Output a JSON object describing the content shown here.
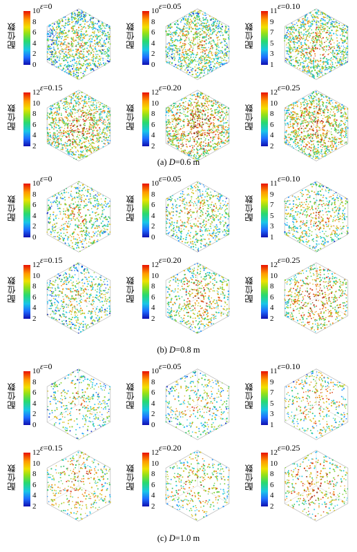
{
  "colorbar_label": "配位数",
  "colors": {
    "particle_palette": [
      "#1030c8",
      "#1e90ff",
      "#19c6e6",
      "#2fc36a",
      "#7fcf2a",
      "#d8c020",
      "#f08a10",
      "#d83010",
      "#8a2a10"
    ]
  },
  "groups": [
    {
      "caption": {
        "prefix": "(a)",
        "var": "D",
        "rest": "=0.6 m"
      },
      "density": 1.0,
      "panels": [
        {
          "eps": "=0",
          "ticks": [
            "10",
            "8",
            "6",
            "4",
            "2",
            "0"
          ],
          "hot": 0.45
        },
        {
          "eps": "=0.05",
          "ticks": [
            "10",
            "8",
            "6",
            "4",
            "2",
            "0"
          ],
          "hot": 0.5
        },
        {
          "eps": "=0.10",
          "ticks": [
            "11",
            "9",
            "7",
            "5",
            "3",
            "1"
          ],
          "hot": 0.55
        },
        {
          "eps": "=0.15",
          "ticks": [
            "12",
            "10",
            "8",
            "6",
            "4",
            "2"
          ],
          "hot": 0.62
        },
        {
          "eps": "=0.20",
          "ticks": [
            "12",
            "10",
            "8",
            "6",
            "4",
            "2"
          ],
          "hot": 0.7
        },
        {
          "eps": "=0.25",
          "ticks": [
            "12",
            "10",
            "8",
            "6",
            "4",
            "2"
          ],
          "hot": 0.66
        }
      ]
    },
    {
      "caption": {
        "prefix": "(b)",
        "var": "D",
        "rest": "=0.8 m"
      },
      "density": 0.6,
      "panels": [
        {
          "eps": "=0",
          "ticks": [
            "10",
            "8",
            "6",
            "4",
            "2",
            "0"
          ],
          "hot": 0.5
        },
        {
          "eps": "=0.05",
          "ticks": [
            "10",
            "8",
            "6",
            "4",
            "2",
            "0"
          ],
          "hot": 0.55
        },
        {
          "eps": "=0.10",
          "ticks": [
            "11",
            "9",
            "7",
            "5",
            "3",
            "1"
          ],
          "hot": 0.55
        },
        {
          "eps": "=0.15",
          "ticks": [
            "12",
            "10",
            "8",
            "6",
            "4",
            "2"
          ],
          "hot": 0.45
        },
        {
          "eps": "=0.20",
          "ticks": [
            "12",
            "10",
            "8",
            "6",
            "4",
            "2"
          ],
          "hot": 0.6
        },
        {
          "eps": "=0.25",
          "ticks": [
            "12",
            "10",
            "8",
            "6",
            "4",
            "2"
          ],
          "hot": 0.7
        }
      ]
    },
    {
      "caption": {
        "prefix": "(c)",
        "var": "D",
        "rest": "=1.0 m"
      },
      "density": 0.38,
      "panels": [
        {
          "eps": "=0",
          "ticks": [
            "10",
            "8",
            "6",
            "4",
            "2",
            "0"
          ],
          "hot": 0.45
        },
        {
          "eps": "=0.05",
          "ticks": [
            "10",
            "8",
            "6",
            "4",
            "2",
            "0"
          ],
          "hot": 0.5
        },
        {
          "eps": "=0.10",
          "ticks": [
            "11",
            "9",
            "7",
            "5",
            "3",
            "1"
          ],
          "hot": 0.55
        },
        {
          "eps": "=0.15",
          "ticks": [
            "12",
            "10",
            "8",
            "6",
            "4",
            "2"
          ],
          "hot": 0.62
        },
        {
          "eps": "=0.20",
          "ticks": [
            "12",
            "10",
            "8",
            "6",
            "4",
            "2"
          ],
          "hot": 0.58
        },
        {
          "eps": "=0.25",
          "ticks": [
            "12",
            "10",
            "8",
            "6",
            "4",
            "2"
          ],
          "hot": 0.68
        }
      ]
    }
  ]
}
